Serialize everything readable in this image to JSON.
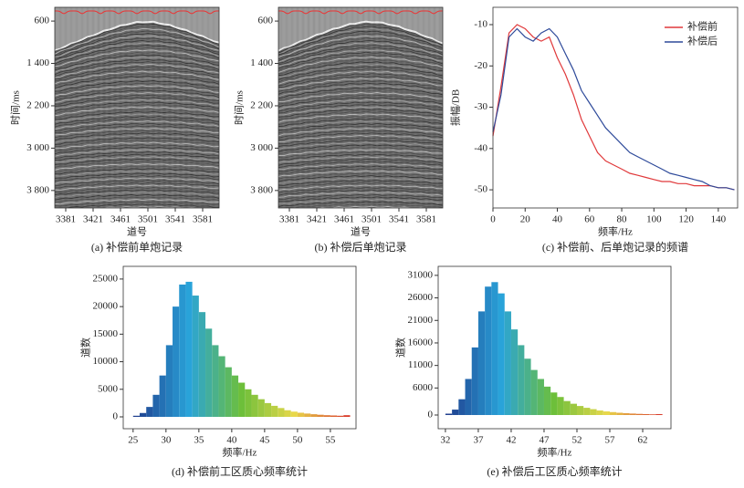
{
  "chart_data": [
    {
      "type": "image",
      "caption": "(a) 补偿前单炮记录",
      "ylabel": "时间/ms",
      "xlabel": "道号",
      "xlim": [
        3365,
        3605
      ],
      "xticks": [
        3381,
        3421,
        3461,
        3501,
        3541,
        3581
      ],
      "ylim": [
        340,
        4130
      ],
      "y_reversed": true,
      "yticks": [
        600,
        {
          "value": 1400,
          "label": "1 400"
        },
        {
          "value": 2200,
          "label": "2 200"
        },
        {
          "value": 3000,
          "label": "3 000"
        },
        {
          "value": 3800,
          "label": "3 800"
        }
      ]
    },
    {
      "type": "image",
      "caption": "(b) 补偿后单炮记录",
      "ylabel": "时间/ms",
      "xlabel": "道号",
      "xlim": [
        3365,
        3605
      ],
      "xticks": [
        3381,
        3421,
        3461,
        3501,
        3541,
        3581
      ],
      "ylim": [
        340,
        4130
      ],
      "y_reversed": true,
      "yticks": [
        600,
        {
          "value": 1400,
          "label": "1 400"
        },
        {
          "value": 2200,
          "label": "2 200"
        },
        {
          "value": 3000,
          "label": "3 000"
        },
        {
          "value": 3800,
          "label": "3 800"
        }
      ]
    },
    {
      "type": "line",
      "caption": "(c) 补偿前、后单炮记录的频谱",
      "ylabel": "振幅/DB",
      "xlabel": "频率/Hz",
      "xlim": [
        0,
        152
      ],
      "xticks": [
        0,
        20,
        40,
        60,
        80,
        100,
        120,
        140
      ],
      "ylim": [
        -54.4,
        -5.8
      ],
      "yticks": [
        -50,
        -40,
        -30,
        -20,
        -10
      ],
      "legend": "upper right",
      "x": [
        0,
        5,
        10,
        15,
        20,
        25,
        30,
        35,
        40,
        45,
        50,
        55,
        60,
        65,
        70,
        75,
        80,
        85,
        90,
        95,
        100,
        105,
        110,
        115,
        120,
        125,
        130,
        135,
        140,
        145,
        150
      ],
      "series": [
        {
          "name": "补偿前",
          "color": "#e0393b",
          "values": [
            -37,
            -25,
            -12,
            -10,
            -11,
            -13,
            -14,
            -13,
            -18,
            -22,
            -27,
            -33,
            -37,
            -41,
            -43,
            -44,
            -45,
            -46,
            -46.5,
            -47,
            -47.5,
            -48,
            -48,
            -48.5,
            -48.5,
            -49,
            -49,
            -49,
            -49.5,
            -49.5,
            -50
          ]
        },
        {
          "name": "补偿后",
          "color": "#2e4a9a",
          "values": [
            -36,
            -27,
            -13,
            -11,
            -13,
            -14,
            -12,
            -11,
            -13,
            -17,
            -21,
            -26,
            -29,
            -32,
            -35,
            -37,
            -39,
            -41,
            -42,
            -43,
            -44,
            -45,
            -46,
            -46.5,
            -47,
            -47.5,
            -48,
            -49,
            -49.5,
            -49.5,
            -50
          ]
        }
      ]
    },
    {
      "type": "histogram",
      "caption": "(d) 补偿前工区质心频率统计",
      "ylabel": "道数",
      "xlabel": "频率/Hz",
      "xlim": [
        23.5,
        58.9
      ],
      "xticks": [
        25,
        30,
        35,
        40,
        45,
        50,
        55
      ],
      "ylim": [
        -2150,
        27300
      ],
      "yticks": [
        0,
        5000,
        10000,
        15000,
        20000,
        25000
      ],
      "colormap": [
        "#1f3f8f",
        "#29a3d9",
        "#6dbf3a",
        "#e8d84a",
        "#d83a2a"
      ],
      "bins": [
        25,
        26,
        27,
        28,
        29,
        30,
        31,
        32,
        33,
        34,
        35,
        36,
        37,
        38,
        39,
        40,
        41,
        42,
        43,
        44,
        45,
        46,
        47,
        48,
        49,
        50,
        51,
        52,
        53,
        54,
        55,
        56,
        57,
        58
      ],
      "values": [
        200,
        700,
        1800,
        4000,
        7500,
        13000,
        20000,
        24000,
        24500,
        22000,
        19000,
        16000,
        13000,
        11000,
        9000,
        7500,
        6200,
        5000,
        4000,
        3200,
        2500,
        2000,
        1600,
        1200,
        950,
        750,
        600,
        480,
        380,
        300,
        250,
        200,
        300
      ]
    },
    {
      "type": "histogram",
      "caption": "(e) 补偿后工区质心频率统计",
      "ylabel": "道数",
      "xlabel": "频率/Hz",
      "xlim": [
        30.9,
        66.3
      ],
      "xticks": [
        32,
        37,
        42,
        47,
        52,
        57,
        62
      ],
      "ylim": [
        -3040,
        33000
      ],
      "yticks": [
        0,
        6000,
        11000,
        16000,
        21000,
        26000,
        31000
      ],
      "colormap": [
        "#1f3f8f",
        "#29a3d9",
        "#6dbf3a",
        "#e8d84a",
        "#d83a2a"
      ],
      "bins": [
        32,
        33,
        34,
        35,
        36,
        37,
        38,
        39,
        40,
        41,
        42,
        43,
        44,
        45,
        46,
        47,
        48,
        49,
        50,
        51,
        52,
        53,
        54,
        55,
        56,
        57,
        58,
        59,
        60,
        61,
        62,
        63,
        64,
        65
      ],
      "values": [
        300,
        1200,
        3500,
        8000,
        15000,
        23000,
        28500,
        29500,
        27000,
        23000,
        19000,
        15500,
        12500,
        10000,
        8000,
        6300,
        5000,
        4000,
        3100,
        2500,
        2000,
        1600,
        1300,
        1000,
        800,
        650,
        500,
        400,
        320,
        250,
        200,
        150,
        200
      ]
    }
  ]
}
